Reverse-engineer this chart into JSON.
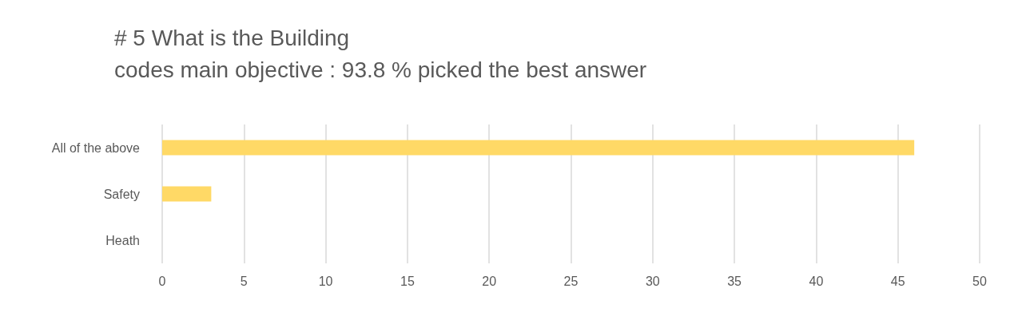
{
  "chart_data": {
    "type": "bar",
    "orientation": "horizontal",
    "title": "# 5 What is the Building\ncodes main objective : 93.8 % picked the best answer",
    "categories": [
      "All of the above",
      "Safety",
      "Heath"
    ],
    "values": [
      46,
      3,
      0
    ],
    "color": "#ffd966",
    "xlim": [
      0,
      50
    ],
    "xticks": [
      0,
      5,
      10,
      15,
      20,
      25,
      30,
      35,
      40,
      45,
      50
    ],
    "grid": "x"
  }
}
